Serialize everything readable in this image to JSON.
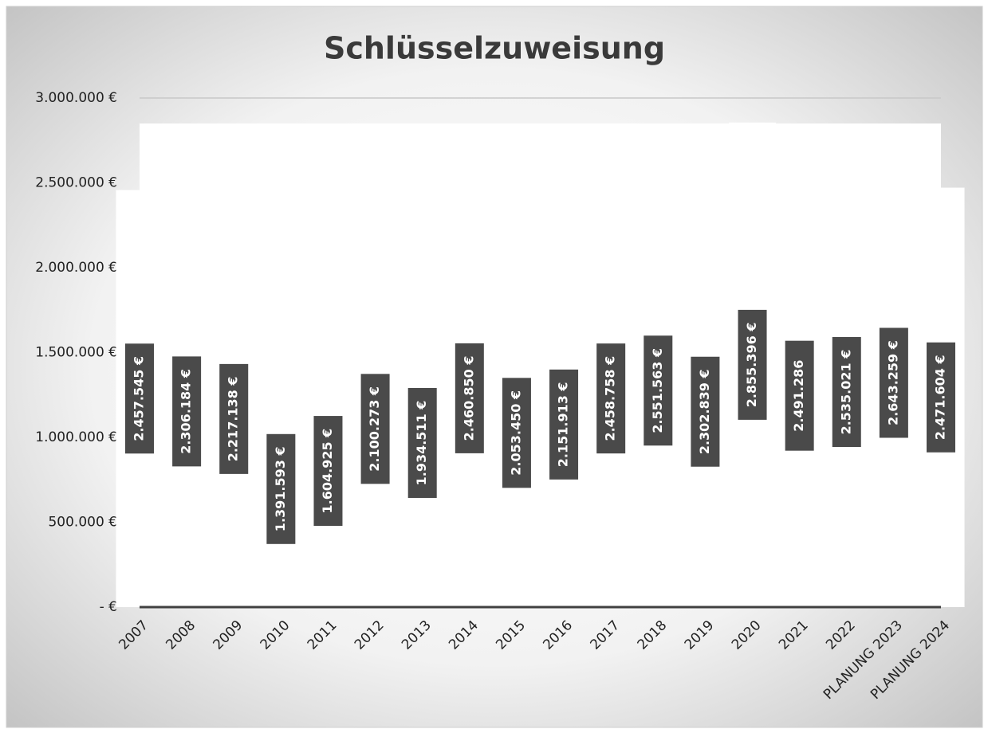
{
  "chart_data": {
    "type": "bar",
    "title": "Schlüsselzuweisung",
    "categories": [
      "2007",
      "2008",
      "2009",
      "2010",
      "2011",
      "2012",
      "2013",
      "2014",
      "2015",
      "2016",
      "2017",
      "2018",
      "2019",
      "2020",
      "2021",
      "2022",
      "PLANUNG 2023",
      "PLANUNG 2024"
    ],
    "values": [
      2457545,
      2306184,
      2217138,
      1391593,
      1604925,
      2100273,
      1934511,
      2460850,
      2053450,
      2151913,
      2458758,
      2551563,
      2302839,
      2855396,
      2491286,
      2535021,
      2643259,
      2471604
    ],
    "value_labels": [
      "2.457.545 €",
      "2.306.184 €",
      "2.217.138 €",
      "1.391.593 €",
      "1.604.925 €",
      "2.100.273 €",
      "1.934.511 €",
      "2.460.850 €",
      "2.053.450 €",
      "2.151.913 €",
      "2.458.758 €",
      "2.551.563 €",
      "2.302.839 €",
      "2.855.396 €",
      "2.491.286",
      "2.535.021 €",
      "2.643.259 €",
      "2.471.604 €"
    ],
    "color": "#ffffff",
    "ylim": [
      0,
      3000000
    ],
    "yticks": [
      {
        "value": 0,
        "label": "-  €"
      },
      {
        "value": 500000,
        "label": "500.000 €"
      },
      {
        "value": 1000000,
        "label": "1.000.000 €"
      },
      {
        "value": 1500000,
        "label": "1.500.000 €"
      },
      {
        "value": 2000000,
        "label": "2.000.000 €"
      },
      {
        "value": 2500000,
        "label": "2.500.000 €"
      },
      {
        "value": 3000000,
        "label": "3.000.000 €"
      }
    ],
    "grid": true
  }
}
